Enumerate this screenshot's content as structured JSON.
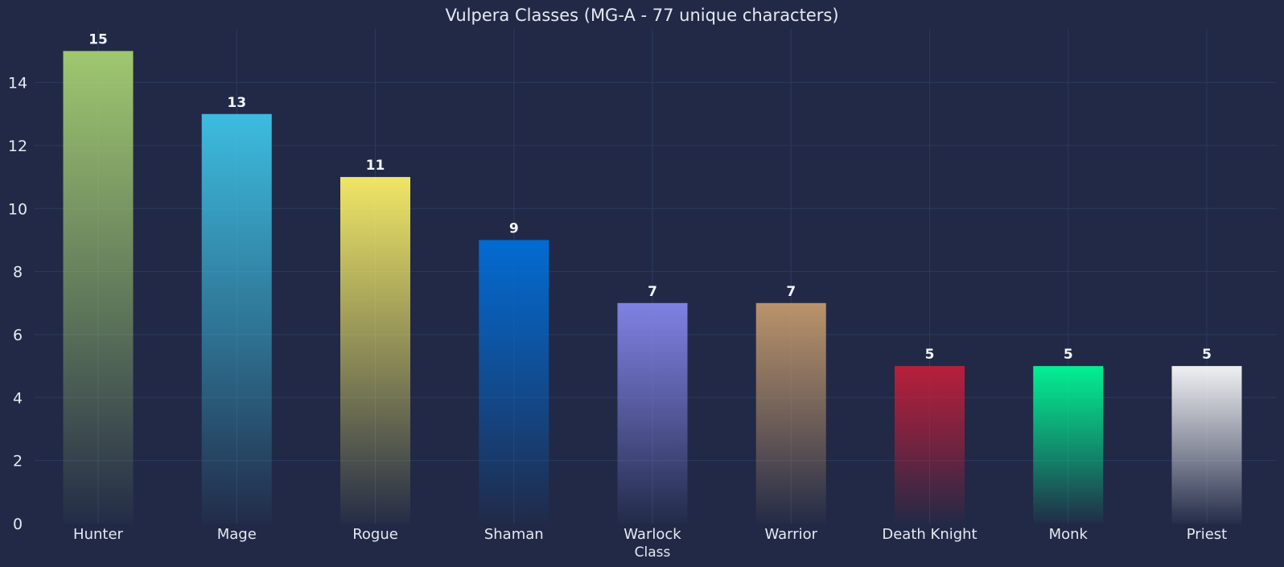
{
  "chart_data": {
    "type": "bar",
    "title": "Vulpera Classes (MG-A - 77 unique characters)",
    "xlabel": "Class",
    "ylabel": "",
    "categories": [
      "Hunter",
      "Mage",
      "Rogue",
      "Shaman",
      "Warlock",
      "Warrior",
      "Death Knight",
      "Monk",
      "Priest"
    ],
    "values": [
      15,
      13,
      11,
      9,
      7,
      7,
      5,
      5,
      5
    ],
    "colors": [
      "#a9d373",
      "#3fc7eb",
      "#fff468",
      "#0070dd",
      "#8788ee",
      "#c69b6d",
      "#c41e3a",
      "#00ff98",
      "#ffffff"
    ],
    "ylim": [
      0,
      15.7
    ],
    "yticks": [
      0,
      2,
      4,
      6,
      8,
      10,
      12,
      14
    ],
    "grid": true,
    "background": "#212946",
    "data_labels": true
  }
}
